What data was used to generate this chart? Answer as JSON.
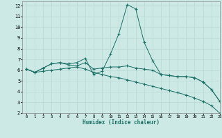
{
  "xlabel": "Humidex (Indice chaleur)",
  "xlim": [
    -0.5,
    23
  ],
  "ylim": [
    2,
    12.4
  ],
  "yticks": [
    2,
    3,
    4,
    5,
    6,
    7,
    8,
    9,
    10,
    11,
    12
  ],
  "xticks": [
    0,
    1,
    2,
    3,
    4,
    5,
    6,
    7,
    8,
    9,
    10,
    11,
    12,
    13,
    14,
    15,
    16,
    17,
    18,
    19,
    20,
    21,
    22,
    23
  ],
  "bg_color": "#cce9e5",
  "grid_color": "#b8d8d4",
  "line_color": "#1a6e65",
  "line1_x": [
    0,
    1,
    2,
    3,
    4,
    5,
    6,
    7,
    8,
    9,
    10,
    11,
    12,
    13,
    14,
    15,
    16,
    17,
    18,
    19,
    20,
    21,
    22,
    23
  ],
  "line1_y": [
    6.1,
    5.8,
    6.2,
    6.6,
    6.7,
    6.6,
    6.7,
    7.1,
    5.6,
    5.9,
    7.5,
    9.4,
    12.1,
    11.7,
    8.6,
    6.9,
    5.6,
    5.5,
    5.4,
    5.4,
    5.3,
    4.9,
    4.2,
    3.1
  ],
  "line2_x": [
    0,
    1,
    2,
    3,
    4,
    5,
    6,
    7,
    8,
    9,
    10,
    11,
    12,
    13,
    14,
    15,
    16,
    17,
    18,
    19,
    20,
    21,
    22,
    23
  ],
  "line2_y": [
    6.1,
    5.8,
    6.2,
    6.6,
    6.7,
    6.5,
    6.4,
    6.7,
    6.1,
    6.2,
    6.3,
    6.3,
    6.4,
    6.2,
    6.1,
    6.0,
    5.6,
    5.5,
    5.4,
    5.4,
    5.3,
    4.9,
    4.2,
    3.1
  ],
  "line3_x": [
    0,
    1,
    2,
    3,
    4,
    5,
    6,
    7,
    8,
    9,
    10,
    11,
    12,
    13,
    14,
    15,
    16,
    17,
    18,
    19,
    20,
    21,
    22,
    23
  ],
  "line3_y": [
    6.1,
    5.8,
    5.9,
    6.0,
    6.1,
    6.2,
    6.3,
    6.1,
    5.8,
    5.6,
    5.4,
    5.3,
    5.1,
    4.9,
    4.7,
    4.5,
    4.3,
    4.1,
    3.9,
    3.7,
    3.4,
    3.1,
    2.7,
    2.0
  ]
}
